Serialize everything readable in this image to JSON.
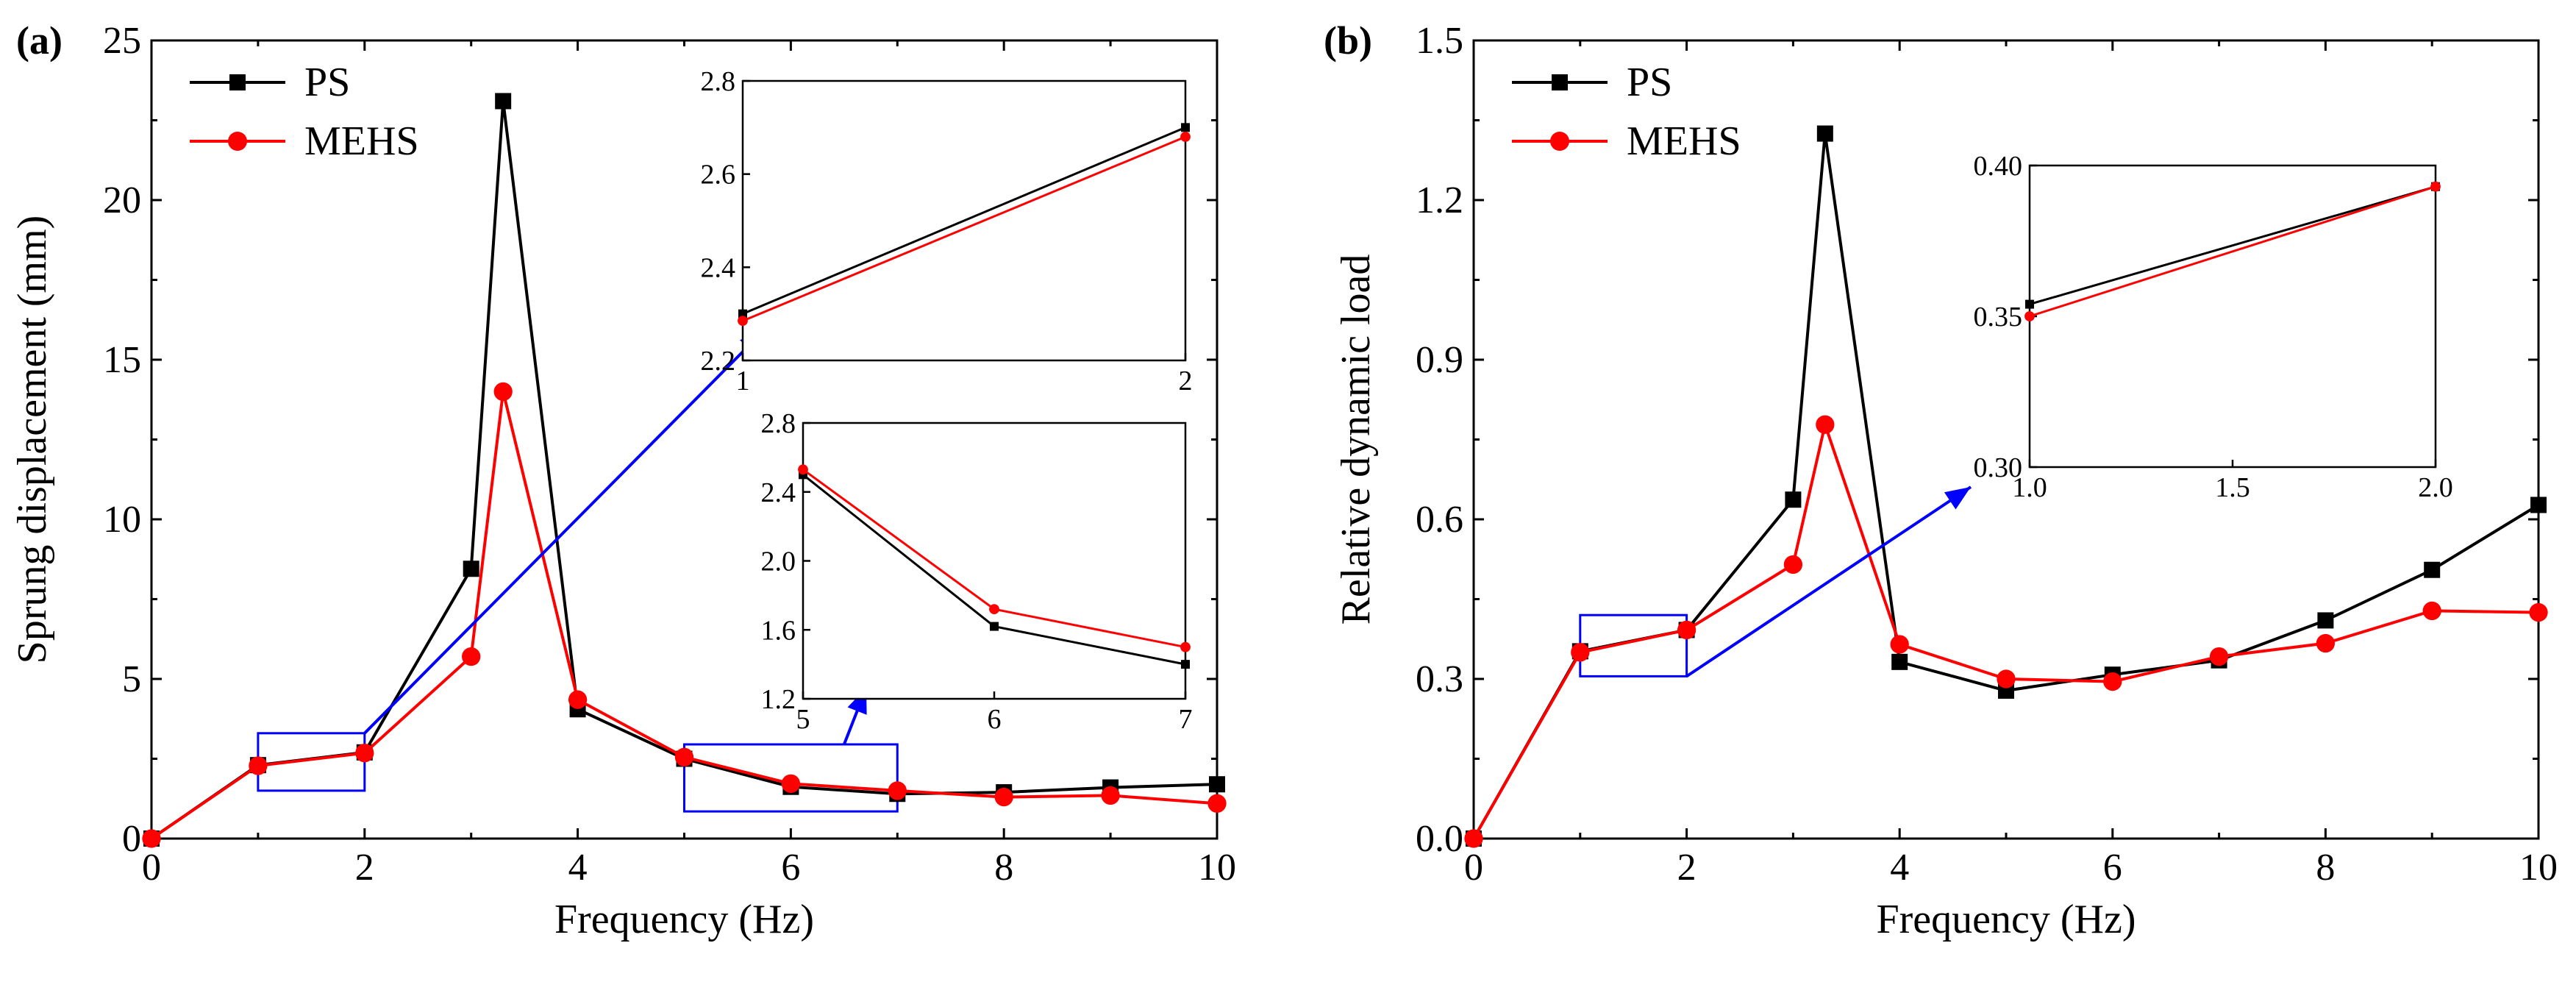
{
  "colors": {
    "ps": "#000000",
    "mehs": "#ff0000",
    "highlight": "#0000ff"
  },
  "legend": {
    "ps": "PS",
    "mehs": "MEHS"
  },
  "chart_data": [
    {
      "type": "line",
      "panel_label": "(a)",
      "xlabel": "Frequency (Hz)",
      "ylabel": "Sprung displacement (mm)",
      "xlim": [
        0,
        10
      ],
      "ylim": [
        0,
        25
      ],
      "xticks": [
        0,
        2,
        4,
        6,
        8,
        10
      ],
      "yticks": [
        0,
        5,
        10,
        15,
        20,
        25
      ],
      "legend_position": "top-left",
      "series": [
        {
          "name": "PS",
          "marker": "square",
          "x": [
            0,
            1,
            2,
            3,
            3.3,
            4,
            5,
            6,
            7,
            8,
            9,
            10
          ],
          "y": [
            0,
            2.3,
            2.7,
            8.45,
            23.1,
            4.05,
            2.5,
            1.62,
            1.4,
            1.45,
            1.6,
            1.7
          ]
        },
        {
          "name": "MEHS",
          "marker": "circle",
          "x": [
            0,
            1,
            2,
            3,
            3.3,
            4,
            5,
            6,
            7,
            8,
            9,
            10
          ],
          "y": [
            0,
            2.28,
            2.68,
            5.7,
            14.0,
            4.35,
            2.55,
            1.72,
            1.5,
            1.3,
            1.35,
            1.1
          ]
        }
      ],
      "highlight_regions": [
        {
          "x": [
            1,
            2
          ],
          "y": [
            1.5,
            3.3
          ]
        },
        {
          "x": [
            5,
            7
          ],
          "y": [
            0.85,
            2.95
          ]
        }
      ],
      "insets": [
        {
          "position": "upper-right",
          "xlim": [
            1,
            2
          ],
          "ylim": [
            2.2,
            2.8
          ],
          "xticks": [
            1,
            2
          ],
          "yticks": [
            2.2,
            2.4,
            2.6,
            2.8
          ],
          "x_tick_labels": [
            "1",
            "2"
          ],
          "y_tick_labels": [
            "2.2",
            "2.4",
            "2.6",
            "2.8"
          ],
          "series": [
            {
              "name": "PS",
              "x": [
                1,
                2
              ],
              "y": [
                2.3,
                2.7
              ]
            },
            {
              "name": "MEHS",
              "x": [
                1,
                2
              ],
              "y": [
                2.285,
                2.68
              ]
            }
          ]
        },
        {
          "position": "middle-right",
          "xlim": [
            5,
            7
          ],
          "ylim": [
            1.2,
            2.8
          ],
          "xticks": [
            5,
            6,
            7
          ],
          "yticks": [
            1.2,
            1.6,
            2.0,
            2.4,
            2.8
          ],
          "x_tick_labels": [
            "5",
            "6",
            "7"
          ],
          "y_tick_labels": [
            "1.2",
            "1.6",
            "2.0",
            "2.4",
            "2.8"
          ],
          "series": [
            {
              "name": "PS",
              "x": [
                5,
                6,
                7
              ],
              "y": [
                2.5,
                1.62,
                1.4
              ]
            },
            {
              "name": "MEHS",
              "x": [
                5,
                6,
                7
              ],
              "y": [
                2.53,
                1.72,
                1.5
              ]
            }
          ]
        }
      ]
    },
    {
      "type": "line",
      "panel_label": "(b)",
      "xlabel": "Frequency (Hz)",
      "ylabel": "Relative dynamic load",
      "xlim": [
        0,
        10
      ],
      "ylim": [
        0,
        1.5
      ],
      "xticks": [
        0,
        2,
        4,
        6,
        8,
        10
      ],
      "yticks": [
        0.0,
        0.3,
        0.6,
        0.9,
        1.2,
        1.5
      ],
      "y_tick_labels": [
        "0.0",
        "0.3",
        "0.6",
        "0.9",
        "1.2",
        "1.5"
      ],
      "legend_position": "top-left",
      "series": [
        {
          "name": "PS",
          "marker": "square",
          "x": [
            0,
            1,
            2,
            3,
            3.3,
            4,
            5,
            6,
            7,
            8,
            9,
            10
          ],
          "y": [
            0,
            0.352,
            0.392,
            0.637,
            1.325,
            0.332,
            0.278,
            0.308,
            0.335,
            0.41,
            0.505,
            0.627
          ]
        },
        {
          "name": "MEHS",
          "marker": "circle",
          "x": [
            0,
            1,
            2,
            3,
            3.3,
            4,
            5,
            6,
            7,
            8,
            9,
            10
          ],
          "y": [
            0,
            0.35,
            0.392,
            0.515,
            0.778,
            0.365,
            0.3,
            0.295,
            0.342,
            0.367,
            0.428,
            0.425
          ]
        }
      ],
      "highlight_regions": [
        {
          "x": [
            1,
            2
          ],
          "y": [
            0.305,
            0.42
          ]
        }
      ],
      "insets": [
        {
          "position": "upper-right",
          "xlim": [
            1.0,
            2.0
          ],
          "ylim": [
            0.3,
            0.4
          ],
          "xticks": [
            1.0,
            1.5,
            2.0
          ],
          "yticks": [
            0.3,
            0.35,
            0.4
          ],
          "x_tick_labels": [
            "1.0",
            "1.5",
            "2.0"
          ],
          "y_tick_labels": [
            "0.30",
            "0.35",
            "0.40"
          ],
          "series": [
            {
              "name": "PS",
              "x": [
                1,
                2
              ],
              "y": [
                0.354,
                0.393
              ]
            },
            {
              "name": "MEHS",
              "x": [
                1,
                2
              ],
              "y": [
                0.35,
                0.393
              ]
            }
          ]
        }
      ]
    }
  ]
}
